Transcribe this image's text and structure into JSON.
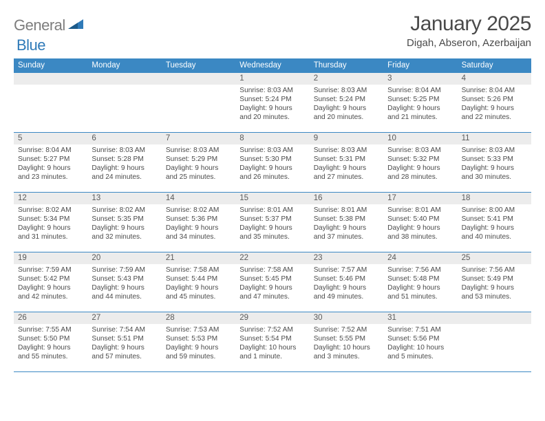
{
  "brand": {
    "general": "General",
    "blue": "Blue"
  },
  "title": "January 2025",
  "location": "Digah, Abseron, Azerbaijan",
  "colors": {
    "header_bg": "#3b88c3",
    "header_text": "#ffffff",
    "daynum_bg": "#ececec",
    "border": "#3b88c3",
    "text": "#4a4a4a",
    "logo_gray": "#7d7d7d",
    "logo_blue": "#2f7ab8"
  },
  "daysOfWeek": [
    "Sunday",
    "Monday",
    "Tuesday",
    "Wednesday",
    "Thursday",
    "Friday",
    "Saturday"
  ],
  "weeks": [
    [
      {
        "empty": true
      },
      {
        "empty": true
      },
      {
        "empty": true
      },
      {
        "num": "1",
        "sunrise": "8:03 AM",
        "sunset": "5:24 PM",
        "daylight": "9 hours and 20 minutes."
      },
      {
        "num": "2",
        "sunrise": "8:03 AM",
        "sunset": "5:24 PM",
        "daylight": "9 hours and 20 minutes."
      },
      {
        "num": "3",
        "sunrise": "8:04 AM",
        "sunset": "5:25 PM",
        "daylight": "9 hours and 21 minutes."
      },
      {
        "num": "4",
        "sunrise": "8:04 AM",
        "sunset": "5:26 PM",
        "daylight": "9 hours and 22 minutes."
      }
    ],
    [
      {
        "num": "5",
        "sunrise": "8:04 AM",
        "sunset": "5:27 PM",
        "daylight": "9 hours and 23 minutes."
      },
      {
        "num": "6",
        "sunrise": "8:03 AM",
        "sunset": "5:28 PM",
        "daylight": "9 hours and 24 minutes."
      },
      {
        "num": "7",
        "sunrise": "8:03 AM",
        "sunset": "5:29 PM",
        "daylight": "9 hours and 25 minutes."
      },
      {
        "num": "8",
        "sunrise": "8:03 AM",
        "sunset": "5:30 PM",
        "daylight": "9 hours and 26 minutes."
      },
      {
        "num": "9",
        "sunrise": "8:03 AM",
        "sunset": "5:31 PM",
        "daylight": "9 hours and 27 minutes."
      },
      {
        "num": "10",
        "sunrise": "8:03 AM",
        "sunset": "5:32 PM",
        "daylight": "9 hours and 28 minutes."
      },
      {
        "num": "11",
        "sunrise": "8:03 AM",
        "sunset": "5:33 PM",
        "daylight": "9 hours and 30 minutes."
      }
    ],
    [
      {
        "num": "12",
        "sunrise": "8:02 AM",
        "sunset": "5:34 PM",
        "daylight": "9 hours and 31 minutes."
      },
      {
        "num": "13",
        "sunrise": "8:02 AM",
        "sunset": "5:35 PM",
        "daylight": "9 hours and 32 minutes."
      },
      {
        "num": "14",
        "sunrise": "8:02 AM",
        "sunset": "5:36 PM",
        "daylight": "9 hours and 34 minutes."
      },
      {
        "num": "15",
        "sunrise": "8:01 AM",
        "sunset": "5:37 PM",
        "daylight": "9 hours and 35 minutes."
      },
      {
        "num": "16",
        "sunrise": "8:01 AM",
        "sunset": "5:38 PM",
        "daylight": "9 hours and 37 minutes."
      },
      {
        "num": "17",
        "sunrise": "8:01 AM",
        "sunset": "5:40 PM",
        "daylight": "9 hours and 38 minutes."
      },
      {
        "num": "18",
        "sunrise": "8:00 AM",
        "sunset": "5:41 PM",
        "daylight": "9 hours and 40 minutes."
      }
    ],
    [
      {
        "num": "19",
        "sunrise": "7:59 AM",
        "sunset": "5:42 PM",
        "daylight": "9 hours and 42 minutes."
      },
      {
        "num": "20",
        "sunrise": "7:59 AM",
        "sunset": "5:43 PM",
        "daylight": "9 hours and 44 minutes."
      },
      {
        "num": "21",
        "sunrise": "7:58 AM",
        "sunset": "5:44 PM",
        "daylight": "9 hours and 45 minutes."
      },
      {
        "num": "22",
        "sunrise": "7:58 AM",
        "sunset": "5:45 PM",
        "daylight": "9 hours and 47 minutes."
      },
      {
        "num": "23",
        "sunrise": "7:57 AM",
        "sunset": "5:46 PM",
        "daylight": "9 hours and 49 minutes."
      },
      {
        "num": "24",
        "sunrise": "7:56 AM",
        "sunset": "5:48 PM",
        "daylight": "9 hours and 51 minutes."
      },
      {
        "num": "25",
        "sunrise": "7:56 AM",
        "sunset": "5:49 PM",
        "daylight": "9 hours and 53 minutes."
      }
    ],
    [
      {
        "num": "26",
        "sunrise": "7:55 AM",
        "sunset": "5:50 PM",
        "daylight": "9 hours and 55 minutes."
      },
      {
        "num": "27",
        "sunrise": "7:54 AM",
        "sunset": "5:51 PM",
        "daylight": "9 hours and 57 minutes."
      },
      {
        "num": "28",
        "sunrise": "7:53 AM",
        "sunset": "5:53 PM",
        "daylight": "9 hours and 59 minutes."
      },
      {
        "num": "29",
        "sunrise": "7:52 AM",
        "sunset": "5:54 PM",
        "daylight": "10 hours and 1 minute."
      },
      {
        "num": "30",
        "sunrise": "7:52 AM",
        "sunset": "5:55 PM",
        "daylight": "10 hours and 3 minutes."
      },
      {
        "num": "31",
        "sunrise": "7:51 AM",
        "sunset": "5:56 PM",
        "daylight": "10 hours and 5 minutes."
      },
      {
        "empty": true
      }
    ]
  ],
  "labels": {
    "sunrise": "Sunrise:",
    "sunset": "Sunset:",
    "daylight": "Daylight:"
  }
}
